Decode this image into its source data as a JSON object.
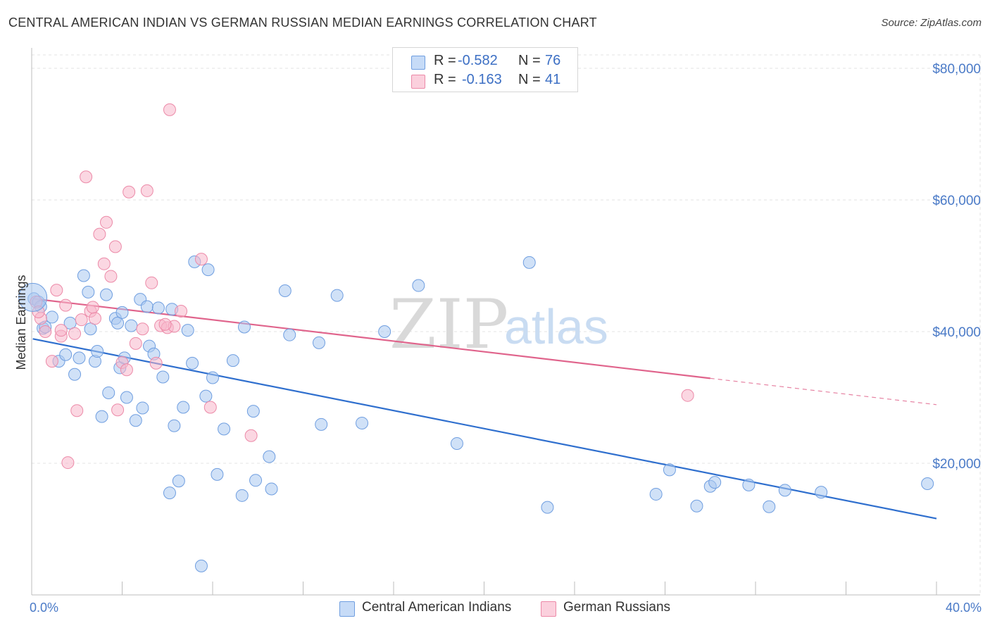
{
  "title": "CENTRAL AMERICAN INDIAN VS GERMAN RUSSIAN MEDIAN EARNINGS CORRELATION CHART",
  "source": "Source: ZipAtlas.com",
  "watermark": {
    "zip": "ZIP",
    "atlas": "atlas"
  },
  "legend": {
    "rows": [
      {
        "r_label": "R =",
        "r_value": "-0.582",
        "n_label": "N =",
        "n_value": "76",
        "color": "#a9c8f0"
      },
      {
        "r_label": "R =",
        "r_value": "-0.163",
        "n_label": "N =",
        "n_value": "41",
        "color": "#f7b7ca"
      }
    ]
  },
  "bottom_legend": [
    "Central American Indians",
    "German Russians"
  ],
  "chart_data": {
    "type": "scatter",
    "title": "CENTRAL AMERICAN INDIAN VS GERMAN RUSSIAN MEDIAN EARNINGS CORRELATION CHART",
    "xlabel": "",
    "ylabel": "Median Earnings",
    "xlim": [
      0,
      40
    ],
    "ylim": [
      0,
      82000
    ],
    "x_tick_labels": [
      "0.0%",
      "40.0%"
    ],
    "y_ticks": [
      20000,
      40000,
      60000,
      80000
    ],
    "y_tick_labels": [
      "$20,000",
      "$40,000",
      "$60,000",
      "$80,000"
    ],
    "grid": true,
    "legend_position": "top-center",
    "series": [
      {
        "name": "Central American Indians",
        "color": "#a9c8f0",
        "stroke": "#6f9ee0",
        "trend_color": "#2f6fce",
        "trend": {
          "x0": 0.05,
          "y0": 38900,
          "x1": 40.0,
          "y1": 11600
        },
        "points": [
          [
            0.1,
            45000
          ],
          [
            0.3,
            44500
          ],
          [
            0.5,
            40500
          ],
          [
            0.6,
            40700
          ],
          [
            0.9,
            42200
          ],
          [
            1.2,
            35500
          ],
          [
            1.5,
            36500
          ],
          [
            1.9,
            33500
          ],
          [
            2.1,
            36000
          ],
          [
            2.3,
            48500
          ],
          [
            2.5,
            46000
          ],
          [
            2.6,
            40400
          ],
          [
            2.8,
            35500
          ],
          [
            2.9,
            37000
          ],
          [
            3.1,
            27100
          ],
          [
            3.3,
            45600
          ],
          [
            3.4,
            30700
          ],
          [
            3.7,
            42000
          ],
          [
            3.8,
            41300
          ],
          [
            3.9,
            34500
          ],
          [
            4.1,
            36000
          ],
          [
            4.2,
            30000
          ],
          [
            4.4,
            40900
          ],
          [
            4.6,
            26500
          ],
          [
            4.8,
            44900
          ],
          [
            4.9,
            28400
          ],
          [
            5.1,
            43800
          ],
          [
            5.2,
            37800
          ],
          [
            5.4,
            36600
          ],
          [
            5.6,
            43600
          ],
          [
            5.8,
            33100
          ],
          [
            6.1,
            15500
          ],
          [
            6.2,
            43400
          ],
          [
            6.3,
            25700
          ],
          [
            6.5,
            17300
          ],
          [
            6.7,
            28500
          ],
          [
            7.1,
            35200
          ],
          [
            7.2,
            50600
          ],
          [
            7.5,
            4400
          ],
          [
            7.7,
            30200
          ],
          [
            7.8,
            49400
          ],
          [
            8.0,
            33000
          ],
          [
            8.2,
            18300
          ],
          [
            8.5,
            25200
          ],
          [
            8.9,
            35600
          ],
          [
            9.3,
            15100
          ],
          [
            9.4,
            40700
          ],
          [
            9.8,
            27900
          ],
          [
            9.9,
            17400
          ],
          [
            10.5,
            21000
          ],
          [
            10.6,
            16100
          ],
          [
            11.2,
            46200
          ],
          [
            11.4,
            39500
          ],
          [
            12.7,
            38300
          ],
          [
            12.8,
            25900
          ],
          [
            13.5,
            45500
          ],
          [
            14.6,
            26100
          ],
          [
            15.6,
            40000
          ],
          [
            17.1,
            47000
          ],
          [
            18.8,
            23000
          ],
          [
            22.0,
            50500
          ],
          [
            22.8,
            13300
          ],
          [
            27.6,
            15300
          ],
          [
            28.2,
            19000
          ],
          [
            29.4,
            13500
          ],
          [
            30.0,
            16500
          ],
          [
            30.2,
            17100
          ],
          [
            31.7,
            16700
          ],
          [
            32.6,
            13400
          ],
          [
            33.3,
            15900
          ],
          [
            34.9,
            15600
          ],
          [
            39.6,
            16900
          ],
          [
            0.4,
            43800
          ],
          [
            1.7,
            41300
          ],
          [
            4.0,
            42900
          ],
          [
            6.9,
            40200
          ]
        ]
      },
      {
        "name": "German Russians",
        "color": "#f7b7ca",
        "stroke": "#ec8aa8",
        "trend_color": "#e0648c",
        "trend": {
          "x0": 0.05,
          "y0": 45000,
          "x1": 30.0,
          "y1": 32900
        },
        "trend_dashed": {
          "x0": 30.0,
          "y0": 32900,
          "x1": 40.0,
          "y1": 28900
        },
        "points": [
          [
            0.2,
            44500
          ],
          [
            0.4,
            42000
          ],
          [
            0.6,
            40000
          ],
          [
            0.9,
            35500
          ],
          [
            1.1,
            46300
          ],
          [
            1.3,
            39300
          ],
          [
            1.5,
            44000
          ],
          [
            1.6,
            20100
          ],
          [
            1.9,
            39700
          ],
          [
            2.0,
            28000
          ],
          [
            2.2,
            41800
          ],
          [
            2.4,
            63500
          ],
          [
            2.6,
            43100
          ],
          [
            2.8,
            42000
          ],
          [
            3.0,
            54800
          ],
          [
            3.2,
            50300
          ],
          [
            3.3,
            56600
          ],
          [
            3.5,
            48400
          ],
          [
            3.7,
            52900
          ],
          [
            3.8,
            28100
          ],
          [
            4.0,
            35300
          ],
          [
            4.3,
            61200
          ],
          [
            4.6,
            38200
          ],
          [
            4.9,
            40400
          ],
          [
            5.1,
            61400
          ],
          [
            5.3,
            47400
          ],
          [
            5.5,
            35200
          ],
          [
            5.7,
            40900
          ],
          [
            6.0,
            40600
          ],
          [
            6.1,
            73700
          ],
          [
            6.3,
            40800
          ],
          [
            6.6,
            43100
          ],
          [
            7.5,
            51000
          ],
          [
            7.9,
            28500
          ],
          [
            9.7,
            24200
          ],
          [
            29.0,
            30300
          ],
          [
            0.3,
            43000
          ],
          [
            2.7,
            43700
          ],
          [
            1.3,
            40200
          ],
          [
            4.2,
            34200
          ],
          [
            5.9,
            41100
          ]
        ]
      }
    ]
  }
}
